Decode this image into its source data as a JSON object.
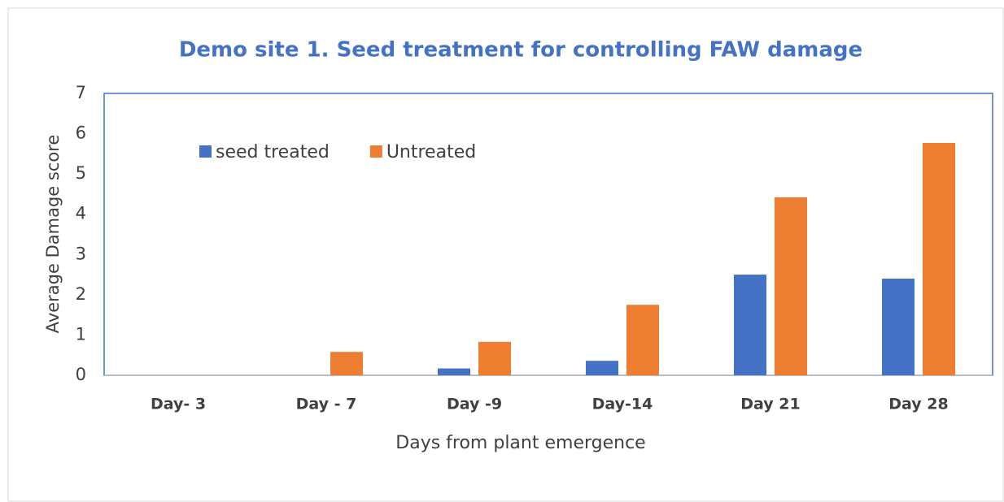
{
  "chart_data": {
    "type": "bar",
    "title": "Demo site 1. Seed treatment for controlling FAW damage",
    "x_label": "Days from plant emergence",
    "y_label": "Average Damage score",
    "categories": [
      "Day- 3",
      "Day - 7",
      "Day -9",
      "Day-14",
      "Day 21",
      "Day 28"
    ],
    "series": [
      {
        "name": "seed treated",
        "color": "#4472c4",
        "values": [
          0,
          0,
          0.17,
          0.36,
          2.5,
          2.4
        ]
      },
      {
        "name": "Untreated",
        "color": "#ed7d31",
        "values": [
          0,
          0.58,
          0.83,
          1.75,
          4.42,
          5.77
        ]
      }
    ],
    "ylim": [
      0,
      7
    ],
    "yticks": [
      0,
      1,
      2,
      3,
      4,
      5,
      6,
      7
    ],
    "grid": false
  }
}
